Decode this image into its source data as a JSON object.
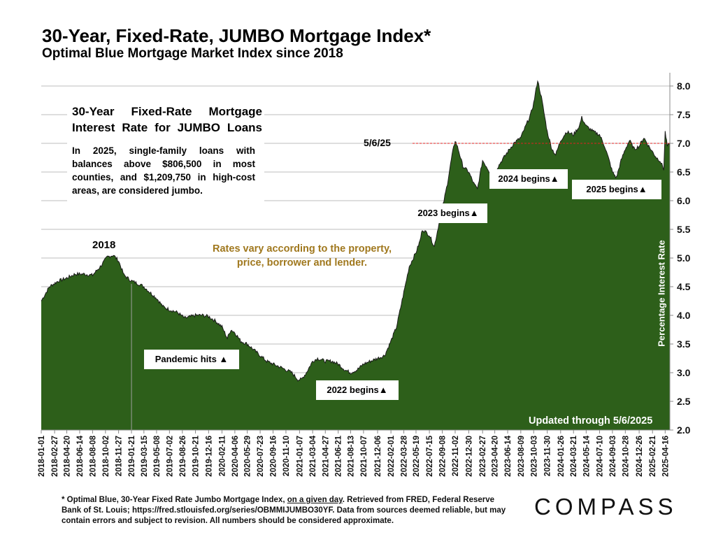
{
  "title": "30-Year, Fixed-Rate, JUMBO Mortgage Index*",
  "subtitle": "Optimal Blue Mortgage Market Index since 2018",
  "note": {
    "heading": "30-Year Fixed-Rate Mortgage Interest Rate for JUMBO Loans",
    "body": "In 2025, single-family loans with balances above $806,500 in most counties, and $1,209,750 in high-cost areas, are considered jumbo."
  },
  "annotations": {
    "year_2018": "2018",
    "rates_note": "Rates vary according to the property, price, borrower and lender.",
    "pandemic": "Pandemic hits ▲",
    "begins_2022": "2022 begins▲",
    "begins_2023": "2023 begins▲",
    "begins_2024": "2024 begins▲",
    "begins_2025": "2025 begins▲",
    "reference_date": "5/6/25",
    "updated": "Updated through 5/6/2025"
  },
  "footnote": {
    "part1": "* Optimal Blue, 30-Year Fixed Rate Jumbo Mortgage Index, ",
    "underlined": "on a given day",
    "part2": ". Retrieved from FRED, Federal Reserve Bank of St. Louis; https://fred.stlouisfed.org/series/OBMMIJUMBO30YF. Data from sources deemed reliable, but may contain errors and subject to revision. All numbers should be considered approximate."
  },
  "brand": "COMPASS",
  "colors": {
    "area_fill": "#2d5f1a",
    "reference_line": "#e02020",
    "rates_note": "#a0781e"
  },
  "chart_data": {
    "type": "area",
    "title": "30-Year, Fixed-Rate, JUMBO Mortgage Index*",
    "subtitle": "Optimal Blue Mortgage Market Index since 2018",
    "xlabel": "",
    "ylabel": "Percentage Interest Rate",
    "ylim": [
      2.0,
      8.2
    ],
    "yticks": [
      "2.0",
      "2.5",
      "3.0",
      "3.5",
      "4.0",
      "4.5",
      "5.0",
      "5.5",
      "6.0",
      "6.5",
      "7.0",
      "7.5",
      "8.0"
    ],
    "xlim": [
      "2018-01-01",
      "2025-05-06"
    ],
    "xticks": [
      "2018-01-01",
      "2018-02-27",
      "2018-04-20",
      "2018-06-14",
      "2018-08-08",
      "2018-10-02",
      "2018-11-27",
      "2019-01-21",
      "2019-03-15",
      "2019-05-08",
      "2019-07-02",
      "2019-08-26",
      "2019-10-21",
      "2019-12-16",
      "2020-02-11",
      "2020-04-06",
      "2020-05-29",
      "2020-07-23",
      "2020-09-16",
      "2020-11-10",
      "2021-01-07",
      "2021-03-04",
      "2021-04-27",
      "2021-06-21",
      "2021-08-13",
      "2021-10-07",
      "2021-12-06",
      "2022-02-01",
      "2022-03-28",
      "2022-05-19",
      "2022-07-15",
      "2022-09-08",
      "2022-11-02",
      "2022-12-30",
      "2023-02-27",
      "2023-04-20",
      "2023-06-14",
      "2023-08-09",
      "2023-10-03",
      "2023-11-30",
      "2024-01-26",
      "2024-03-21",
      "2024-05-14",
      "2024-07-10",
      "2024-09-03",
      "2024-10-28",
      "2024-12-26",
      "2025-02-21",
      "2025-04-16"
    ],
    "grid": true,
    "legend": "none",
    "series": [
      {
        "name": "",
        "points": [
          [
            "2018-01-01",
            4.25
          ],
          [
            "2018-02-05",
            4.5
          ],
          [
            "2018-03-15",
            4.6
          ],
          [
            "2018-04-20",
            4.65
          ],
          [
            "2018-05-25",
            4.72
          ],
          [
            "2018-07-01",
            4.72
          ],
          [
            "2018-08-08",
            4.7
          ],
          [
            "2018-09-10",
            4.85
          ],
          [
            "2018-10-10",
            5.02
          ],
          [
            "2018-11-05",
            5.05
          ],
          [
            "2018-11-27",
            4.95
          ],
          [
            "2018-12-20",
            4.7
          ],
          [
            "2019-01-21",
            4.6
          ],
          [
            "2019-02-20",
            4.55
          ],
          [
            "2019-03-15",
            4.5
          ],
          [
            "2019-04-10",
            4.4
          ],
          [
            "2019-05-08",
            4.3
          ],
          [
            "2019-06-05",
            4.15
          ],
          [
            "2019-07-02",
            4.1
          ],
          [
            "2019-08-05",
            4.05
          ],
          [
            "2019-09-05",
            3.95
          ],
          [
            "2019-10-21",
            4.0
          ],
          [
            "2019-11-20",
            4.0
          ],
          [
            "2019-12-16",
            3.98
          ],
          [
            "2020-01-15",
            3.9
          ],
          [
            "2020-02-11",
            3.8
          ],
          [
            "2020-03-05",
            3.6
          ],
          [
            "2020-03-20",
            3.75
          ],
          [
            "2020-04-06",
            3.7
          ],
          [
            "2020-05-01",
            3.55
          ],
          [
            "2020-05-29",
            3.5
          ],
          [
            "2020-06-25",
            3.4
          ],
          [
            "2020-07-23",
            3.3
          ],
          [
            "2020-08-20",
            3.2
          ],
          [
            "2020-09-16",
            3.15
          ],
          [
            "2020-10-15",
            3.1
          ],
          [
            "2020-11-10",
            3.05
          ],
          [
            "2020-12-05",
            3.0
          ],
          [
            "2020-12-31",
            2.88
          ],
          [
            "2021-01-15",
            2.88
          ],
          [
            "2021-02-05",
            3.0
          ],
          [
            "2021-03-04",
            3.2
          ],
          [
            "2021-03-25",
            3.25
          ],
          [
            "2021-04-27",
            3.2
          ],
          [
            "2021-05-25",
            3.2
          ],
          [
            "2021-06-21",
            3.15
          ],
          [
            "2021-07-20",
            3.05
          ],
          [
            "2021-08-13",
            3.0
          ],
          [
            "2021-09-10",
            3.05
          ],
          [
            "2021-10-07",
            3.15
          ],
          [
            "2021-11-05",
            3.2
          ],
          [
            "2021-12-06",
            3.25
          ],
          [
            "2022-01-05",
            3.3
          ],
          [
            "2022-02-01",
            3.55
          ],
          [
            "2022-02-25",
            3.8
          ],
          [
            "2022-03-28",
            4.4
          ],
          [
            "2022-04-20",
            4.85
          ],
          [
            "2022-05-19",
            5.1
          ],
          [
            "2022-06-05",
            5.3
          ],
          [
            "2022-06-15",
            5.5
          ],
          [
            "2022-07-15",
            5.4
          ],
          [
            "2022-08-05",
            5.2
          ],
          [
            "2022-08-25",
            5.6
          ],
          [
            "2022-09-08",
            5.85
          ],
          [
            "2022-09-30",
            6.3
          ],
          [
            "2022-10-20",
            6.8
          ],
          [
            "2022-11-02",
            7.05
          ],
          [
            "2022-11-15",
            6.9
          ],
          [
            "2022-12-05",
            6.6
          ],
          [
            "2022-12-30",
            6.5
          ],
          [
            "2023-01-20",
            6.3
          ],
          [
            "2023-02-05",
            6.2
          ],
          [
            "2023-02-27",
            6.7
          ],
          [
            "2023-03-15",
            6.6
          ],
          [
            "2023-04-05",
            6.45
          ],
          [
            "2023-04-20",
            6.5
          ],
          [
            "2023-05-20",
            6.7
          ],
          [
            "2023-06-14",
            6.85
          ],
          [
            "2023-07-10",
            7.0
          ],
          [
            "2023-08-09",
            7.1
          ],
          [
            "2023-08-30",
            7.3
          ],
          [
            "2023-09-20",
            7.5
          ],
          [
            "2023-10-03",
            7.7
          ],
          [
            "2023-10-20",
            8.1
          ],
          [
            "2023-11-05",
            7.8
          ],
          [
            "2023-11-30",
            7.2
          ],
          [
            "2023-12-20",
            6.9
          ],
          [
            "2024-01-05",
            6.8
          ],
          [
            "2024-01-26",
            7.05
          ],
          [
            "2024-02-20",
            7.2
          ],
          [
            "2024-03-21",
            7.15
          ],
          [
            "2024-04-15",
            7.3
          ],
          [
            "2024-04-25",
            7.45
          ],
          [
            "2024-05-14",
            7.3
          ],
          [
            "2024-06-15",
            7.2
          ],
          [
            "2024-07-10",
            7.15
          ],
          [
            "2024-08-01",
            6.95
          ],
          [
            "2024-08-20",
            6.7
          ],
          [
            "2024-09-03",
            6.5
          ],
          [
            "2024-09-20",
            6.4
          ],
          [
            "2024-10-10",
            6.7
          ],
          [
            "2024-10-28",
            6.9
          ],
          [
            "2024-11-15",
            7.05
          ],
          [
            "2024-12-05",
            6.9
          ],
          [
            "2024-12-26",
            6.95
          ],
          [
            "2025-01-15",
            7.1
          ],
          [
            "2025-02-05",
            6.95
          ],
          [
            "2025-02-21",
            6.85
          ],
          [
            "2025-03-10",
            6.75
          ],
          [
            "2025-03-25",
            6.7
          ],
          [
            "2025-04-10",
            6.55
          ],
          [
            "2025-04-16",
            7.2
          ],
          [
            "2025-04-25",
            6.95
          ],
          [
            "2025-05-06",
            6.98
          ]
        ]
      }
    ],
    "reference_line": {
      "label": "5/6/25",
      "y": 7.0
    },
    "vertical_marker": {
      "x": "2019-01-21"
    }
  }
}
